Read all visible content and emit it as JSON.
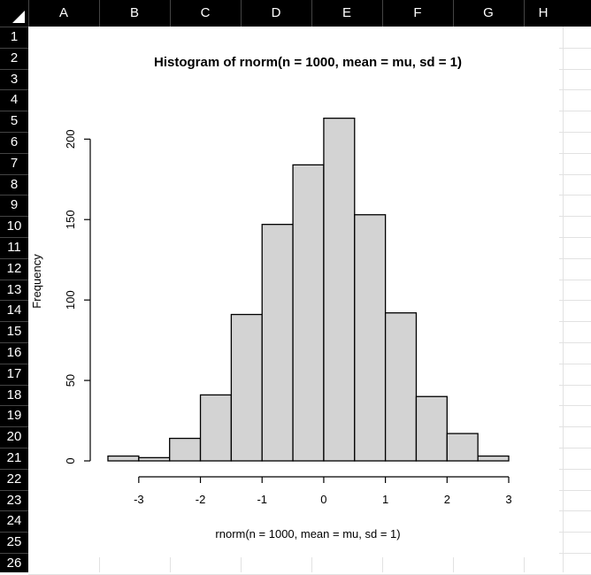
{
  "spreadsheet": {
    "columns": [
      "A",
      "B",
      "C",
      "D",
      "E",
      "F",
      "G",
      "H"
    ],
    "rows": [
      "1",
      "2",
      "3",
      "4",
      "5",
      "6",
      "7",
      "8",
      "9",
      "10",
      "11",
      "12",
      "13",
      "14",
      "15",
      "16",
      "17",
      "18",
      "19",
      "20",
      "21",
      "22",
      "23",
      "24",
      "25",
      "26"
    ]
  },
  "chart_data": {
    "type": "bar",
    "title": "Histogram of rnorm(n = 1000, mean = mu, sd = 1)",
    "xlabel": "rnorm(n = 1000, mean = mu, sd = 1)",
    "ylabel": "Frequency",
    "bin_edges": [
      -3.5,
      -3,
      -2.5,
      -2,
      -1.5,
      -1,
      -0.5,
      0,
      0.5,
      1,
      1.5,
      2,
      2.5,
      3
    ],
    "values": [
      3,
      2,
      14,
      41,
      91,
      147,
      184,
      213,
      153,
      92,
      40,
      17,
      3
    ],
    "xlim": [
      -3.5,
      3
    ],
    "ylim": [
      0,
      215
    ],
    "x_ticks": [
      "-3",
      "-2",
      "-1",
      "0",
      "1",
      "2",
      "3"
    ],
    "x_tick_values": [
      -3,
      -2,
      -1,
      0,
      1,
      2,
      3
    ],
    "y_ticks": [
      "0",
      "50",
      "100",
      "150",
      "200"
    ],
    "y_tick_values": [
      0,
      50,
      100,
      150,
      200
    ],
    "bar_color": "#d3d3d3",
    "grid": false
  }
}
